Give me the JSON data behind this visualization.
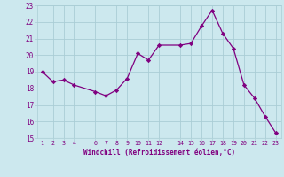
{
  "x": [
    1,
    2,
    3,
    4,
    6,
    7,
    8,
    9,
    10,
    11,
    12,
    14,
    15,
    16,
    17,
    18,
    19,
    20,
    21,
    22,
    23
  ],
  "y": [
    19.0,
    18.4,
    18.5,
    18.2,
    17.8,
    17.55,
    17.9,
    18.6,
    20.1,
    19.7,
    20.6,
    20.6,
    20.7,
    21.75,
    22.7,
    21.3,
    20.4,
    18.2,
    17.4,
    16.3,
    15.3
  ],
  "line_color": "#800080",
  "marker": "D",
  "marker_size": 2.2,
  "bg_color": "#cce8ee",
  "grid_color": "#aacdd5",
  "xlabel": "Windchill (Refroidissement éolien,°C)",
  "xlabel_color": "#800080",
  "tick_color": "#800080",
  "ylim": [
    15,
    23
  ],
  "yticks": [
    15,
    16,
    17,
    18,
    19,
    20,
    21,
    22,
    23
  ],
  "xticks": [
    1,
    2,
    3,
    4,
    6,
    7,
    8,
    9,
    10,
    11,
    12,
    14,
    15,
    16,
    17,
    18,
    19,
    20,
    21,
    22,
    23
  ],
  "xlim": [
    0.5,
    23.5
  ]
}
